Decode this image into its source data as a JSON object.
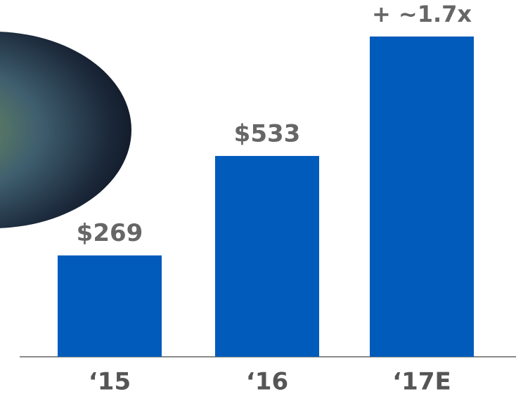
{
  "chart_data": {
    "type": "bar",
    "categories": [
      "‘15",
      "‘16",
      "‘17E"
    ],
    "values": [
      269,
      533,
      850
    ],
    "value_labels": [
      "$269",
      "$533",
      null
    ],
    "color": "#005bbb",
    "annotation": "+ ~1.7x"
  }
}
